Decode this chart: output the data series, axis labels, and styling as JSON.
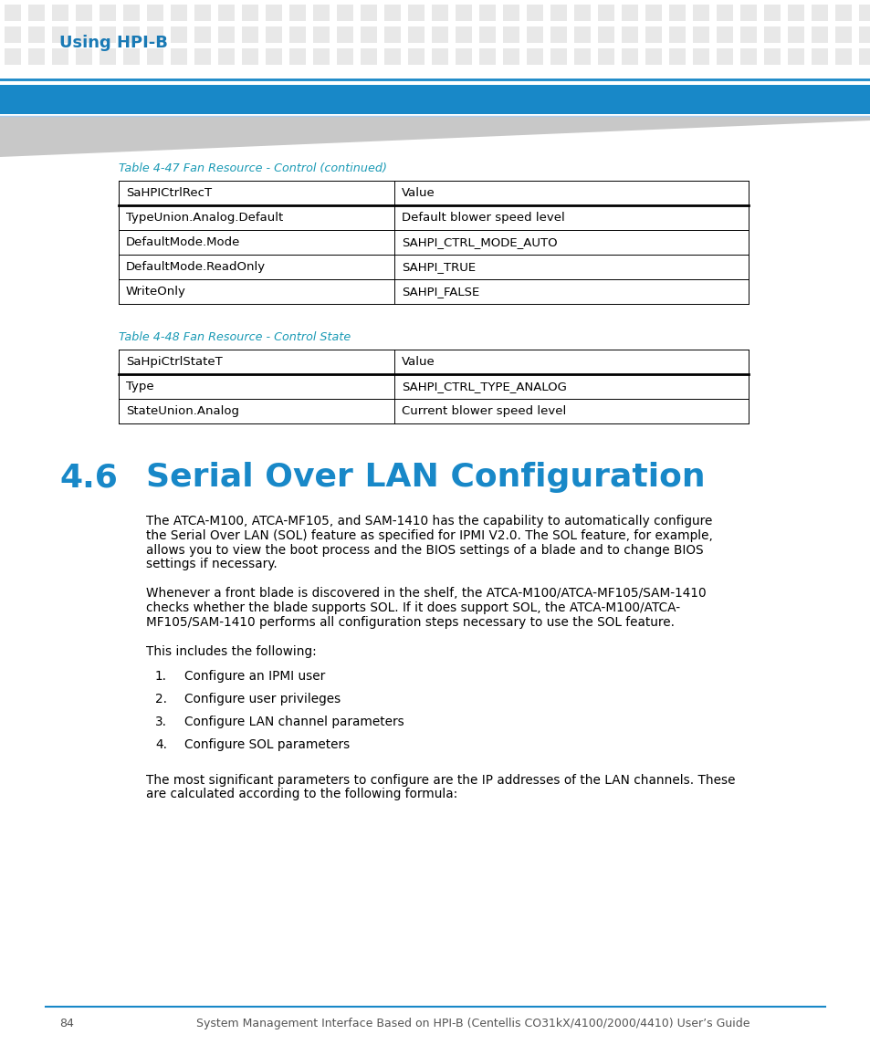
{
  "page_bg": "#ffffff",
  "header_text": "Using HPI-B",
  "header_text_color": "#1a7ab5",
  "dot_color": "#e8e8e8",
  "blue_bar_color": "#1888c8",
  "thin_blue_line_color": "#1888c8",
  "table47_title": "Table 4-47 Fan Resource - Control (continued)",
  "table47_title_color": "#1a9ab5",
  "table47_header": [
    "SaHPICtrlRecT",
    "Value"
  ],
  "table47_rows": [
    [
      "TypeUnion.Analog.Default",
      "Default blower speed level"
    ],
    [
      "DefaultMode.Mode",
      "SAHPI_CTRL_MODE_AUTO"
    ],
    [
      "DefaultMode.ReadOnly",
      "SAHPI_TRUE"
    ],
    [
      "WriteOnly",
      "SAHPI_FALSE"
    ]
  ],
  "table48_title": "Table 4-48 Fan Resource - Control State",
  "table48_title_color": "#1a9ab5",
  "table48_header": [
    "SaHpiCtrlStateT",
    "Value"
  ],
  "table48_rows": [
    [
      "Type",
      "SAHPI_CTRL_TYPE_ANALOG"
    ],
    [
      "StateUnion.Analog",
      "Current blower speed level"
    ]
  ],
  "section_number": "4.6",
  "section_title": "Serial Over LAN Configuration",
  "section_color": "#1888c8",
  "para1_lines": [
    "The ATCA-M100, ATCA-MF105, and SAM-1410 has the capability to automatically configure",
    "the Serial Over LAN (SOL) feature as specified for IPMI V2.0. The SOL feature, for example,",
    "allows you to view the boot process and the BIOS settings of a blade and to change BIOS",
    "settings if necessary."
  ],
  "para2_lines": [
    "Whenever a front blade is discovered in the shelf, the ATCA-M100/ATCA-MF105/SAM-1410",
    "checks whether the blade supports SOL. If it does support SOL, the ATCA-M100/ATCA-",
    "MF105/SAM-1410 performs all configuration steps necessary to use the SOL feature."
  ],
  "para3": "This includes the following:",
  "list_items": [
    [
      "1.",
      "Configure an IPMI user"
    ],
    [
      "2.",
      "Configure user privileges"
    ],
    [
      "3.",
      "Configure LAN channel parameters"
    ],
    [
      "4.",
      "Configure SOL parameters"
    ]
  ],
  "para4_lines": [
    "The most significant parameters to configure are the IP addresses of the LAN channels. These",
    "are calculated according to the following formula:"
  ],
  "footer_num": "84",
  "footer_text": "System Management Interface Based on HPI-B (Centellis CO31kX/4100/2000/4410) User’s Guide",
  "footer_line_color": "#1888c8",
  "footer_color": "#555555",
  "table_border_color": "#000000",
  "text_color": "#000000"
}
